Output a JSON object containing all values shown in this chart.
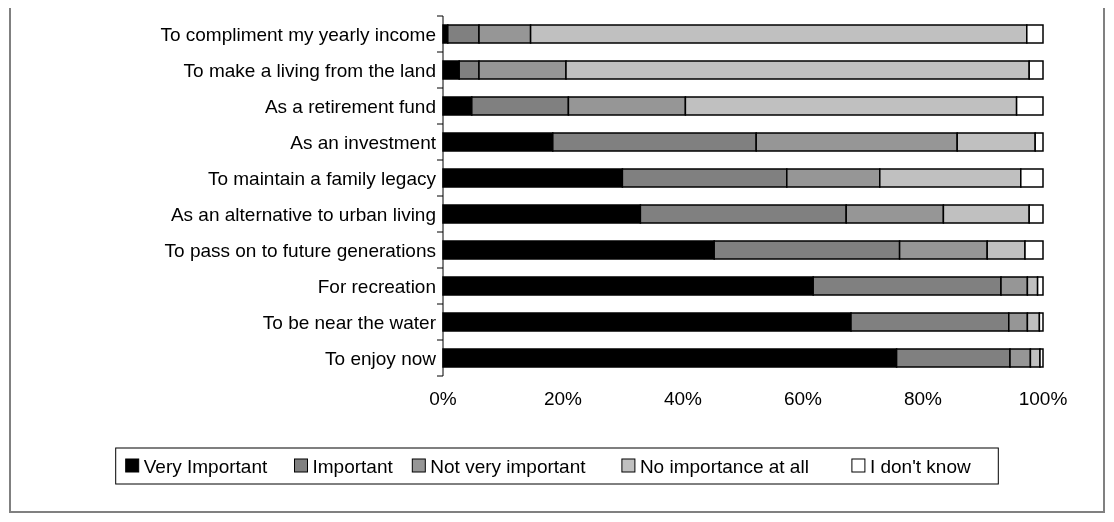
{
  "chart_data": {
    "type": "bar",
    "orientation": "horizontal",
    "stacked": true,
    "grid": false,
    "legend": "bottom",
    "categories": [
      "To compliment my yearly income",
      "To make a living from the land",
      "As a retirement fund",
      "As an investment",
      "To maintain a family legacy",
      "As an alternative to urban living",
      "To pass on to future generations",
      "For recreation",
      "To be near the water",
      "To enjoy now"
    ],
    "xlim": [
      0,
      100
    ],
    "xticks": [
      {
        "value": 0,
        "label": "0%"
      },
      {
        "value": 20,
        "label": "20%"
      },
      {
        "value": 40,
        "label": "40%"
      },
      {
        "value": 60,
        "label": "60%"
      },
      {
        "value": 80,
        "label": "80%"
      },
      {
        "value": 100,
        "label": "100%"
      }
    ],
    "series": [
      {
        "name": "Very Important",
        "color": "#000000",
        "values": [
          0.8,
          2.7,
          4.8,
          18.3,
          29.9,
          32.9,
          45.2,
          61.7,
          68.0,
          75.6
        ]
      },
      {
        "name": "Important",
        "color": "#808080",
        "values": [
          5.2,
          3.3,
          16.1,
          33.9,
          27.4,
          34.3,
          30.9,
          31.3,
          26.3,
          18.9
        ]
      },
      {
        "name": "Not very important",
        "color": "#969696",
        "values": [
          8.6,
          14.5,
          19.5,
          33.5,
          15.5,
          16.2,
          14.6,
          4.4,
          3.1,
          3.4
        ]
      },
      {
        "name": "No importance at all",
        "color": "#c0c0c0",
        "values": [
          82.7,
          77.2,
          55.2,
          13.0,
          23.5,
          14.3,
          6.3,
          1.7,
          2.0,
          1.6
        ]
      },
      {
        "name": "I don't know",
        "color": "#ffffff",
        "values": [
          2.7,
          2.3,
          4.4,
          1.3,
          3.7,
          2.3,
          3.0,
          0.9,
          0.6,
          0.5
        ]
      }
    ]
  }
}
